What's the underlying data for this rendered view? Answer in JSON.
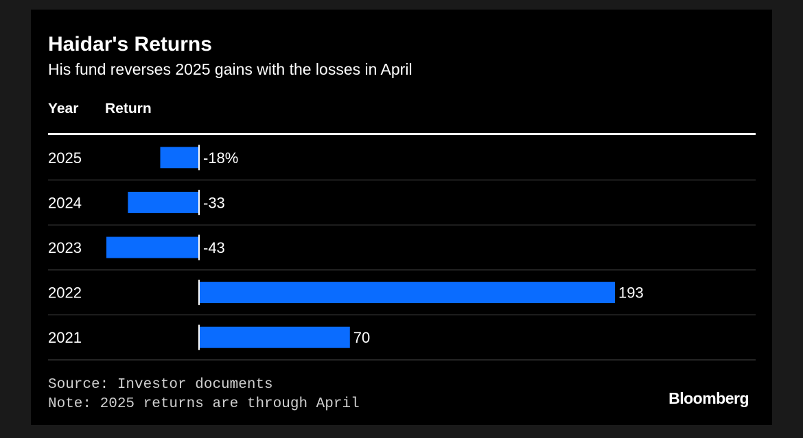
{
  "chart_data": {
    "type": "bar",
    "orientation": "horizontal",
    "title": "Haidar's Returns",
    "subtitle": "His fund reverses 2025 gains with the losses in April",
    "column_headers": [
      "Year",
      "Return"
    ],
    "categories": [
      "2025",
      "2024",
      "2023",
      "2022",
      "2021"
    ],
    "values": [
      -18,
      -33,
      -43,
      193,
      70
    ],
    "value_labels": [
      "-18%",
      "-33",
      "-43",
      "193",
      "70"
    ],
    "bar_color": "#0a6cff",
    "xlim": [
      -43,
      193
    ]
  },
  "footer": {
    "source": "Source: Investor documents",
    "note": "Note: 2025 returns are through April"
  },
  "brand": "Bloomberg",
  "colors": {
    "background": "#000000",
    "text": "#ffffff",
    "bar": "#0a6cff",
    "row_divider": "#3a3a3a"
  }
}
